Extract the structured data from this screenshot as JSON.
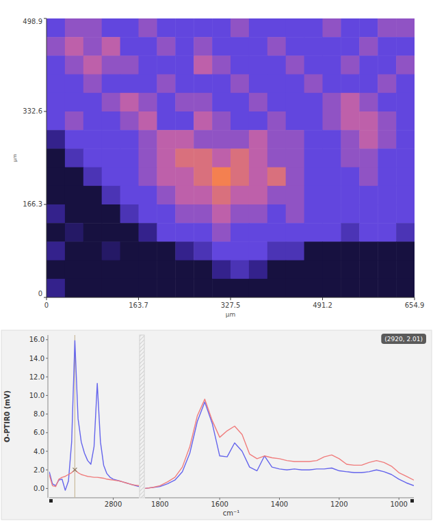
{
  "chart_data": [
    {
      "type": "heatmap",
      "x_label": "µm",
      "y_label": "µm",
      "xlim": [
        0,
        654.9
      ],
      "ylim": [
        0,
        498.9
      ],
      "xticks": [
        0,
        163.7,
        327.5,
        491.2,
        654.9
      ],
      "yticks": [
        0,
        166.3,
        332.6,
        498.9
      ],
      "zlim": [
        0,
        1
      ],
      "cells": [
        [
          0.5,
          0.6,
          0.6,
          0.5,
          0.5,
          0.6,
          0.5,
          0.5,
          0.5,
          0.5,
          0.6,
          0.5,
          0.5,
          0.5,
          0.5,
          0.6,
          0.5,
          0.5,
          0.6,
          0.6
        ],
        [
          0.6,
          0.7,
          0.6,
          0.7,
          0.5,
          0.5,
          0.6,
          0.5,
          0.6,
          0.5,
          0.5,
          0.5,
          0.6,
          0.5,
          0.5,
          0.5,
          0.5,
          0.6,
          0.5,
          0.5
        ],
        [
          0.5,
          0.6,
          0.7,
          0.6,
          0.6,
          0.5,
          0.5,
          0.5,
          0.7,
          0.6,
          0.5,
          0.5,
          0.5,
          0.6,
          0.5,
          0.5,
          0.6,
          0.5,
          0.5,
          0.6
        ],
        [
          0.5,
          0.5,
          0.6,
          0.5,
          0.5,
          0.5,
          0.6,
          0.5,
          0.5,
          0.5,
          0.6,
          0.5,
          0.5,
          0.5,
          0.6,
          0.5,
          0.5,
          0.5,
          0.6,
          0.5
        ],
        [
          0.5,
          0.5,
          0.5,
          0.6,
          0.7,
          0.6,
          0.5,
          0.6,
          0.6,
          0.5,
          0.5,
          0.6,
          0.5,
          0.5,
          0.5,
          0.6,
          0.7,
          0.6,
          0.5,
          0.5
        ],
        [
          0.5,
          0.6,
          0.5,
          0.5,
          0.6,
          0.7,
          0.5,
          0.5,
          0.7,
          0.6,
          0.5,
          0.5,
          0.6,
          0.5,
          0.5,
          0.6,
          0.7,
          0.7,
          0.6,
          0.5
        ],
        [
          0.3,
          0.5,
          0.5,
          0.5,
          0.5,
          0.6,
          0.7,
          0.7,
          0.6,
          0.6,
          0.6,
          0.7,
          0.6,
          0.6,
          0.5,
          0.5,
          0.6,
          0.7,
          0.6,
          0.5
        ],
        [
          0.1,
          0.4,
          0.5,
          0.5,
          0.5,
          0.6,
          0.7,
          0.8,
          0.8,
          0.7,
          0.8,
          0.7,
          0.6,
          0.6,
          0.5,
          0.5,
          0.6,
          0.6,
          0.5,
          0.5
        ],
        [
          0.1,
          0.1,
          0.4,
          0.5,
          0.5,
          0.6,
          0.7,
          0.7,
          0.8,
          0.9,
          0.8,
          0.7,
          0.8,
          0.6,
          0.5,
          0.5,
          0.5,
          0.6,
          0.5,
          0.5
        ],
        [
          0.1,
          0.1,
          0.1,
          0.4,
          0.5,
          0.5,
          0.6,
          0.7,
          0.7,
          0.8,
          0.7,
          0.7,
          0.6,
          0.6,
          0.5,
          0.5,
          0.5,
          0.5,
          0.5,
          0.5
        ],
        [
          0.3,
          0.1,
          0.1,
          0.1,
          0.4,
          0.5,
          0.5,
          0.6,
          0.6,
          0.7,
          0.6,
          0.6,
          0.5,
          0.6,
          0.5,
          0.5,
          0.5,
          0.5,
          0.5,
          0.5
        ],
        [
          0.1,
          0.2,
          0.1,
          0.1,
          0.1,
          0.3,
          0.5,
          0.5,
          0.5,
          0.6,
          0.5,
          0.5,
          0.5,
          0.5,
          0.5,
          0.5,
          0.4,
          0.5,
          0.5,
          0.4
        ],
        [
          0.3,
          0.1,
          0.1,
          0.2,
          0.1,
          0.1,
          0.1,
          0.3,
          0.4,
          0.5,
          0.5,
          0.5,
          0.4,
          0.4,
          0.1,
          0.1,
          0.1,
          0.1,
          0.1,
          0.1
        ],
        [
          0.1,
          0.1,
          0.1,
          0.1,
          0.1,
          0.1,
          0.1,
          0.1,
          0.1,
          0.3,
          0.4,
          0.3,
          0.1,
          0.1,
          0.1,
          0.1,
          0.1,
          0.1,
          0.1,
          0.1
        ],
        [
          0.3,
          0.1,
          0.1,
          0.1,
          0.1,
          0.1,
          0.1,
          0.1,
          0.1,
          0.1,
          0.1,
          0.1,
          0.1,
          0.1,
          0.1,
          0.1,
          0.1,
          0.1,
          0.1,
          0.1
        ]
      ]
    },
    {
      "type": "line",
      "y_label": "O-PTIR0 (mV)",
      "xlim": [
        3000,
        2720
      ],
      "ylim": [
        -1,
        16.5
      ],
      "xticks": [
        2800
      ],
      "yticks": [
        {
          "value": 0,
          "label": "0.0"
        },
        {
          "value": 2,
          "label": "2.0"
        },
        {
          "value": 4,
          "label": "4.0"
        },
        {
          "value": 6,
          "label": "6.0"
        },
        {
          "value": 8,
          "label": "8.0"
        },
        {
          "value": 10,
          "label": "10.0"
        },
        {
          "value": 12,
          "label": "12.0"
        },
        {
          "value": 14,
          "label": "14.0"
        },
        {
          "value": 16,
          "label": "16.0"
        }
      ],
      "annotations": [
        {
          "text": "(2920, 2.01)",
          "x": 2920,
          "y": 2.01
        }
      ],
      "x": [
        3000,
        2990,
        2980,
        2970,
        2960,
        2950,
        2940,
        2930,
        2920,
        2910,
        2900,
        2890,
        2880,
        2870,
        2860,
        2850,
        2840,
        2830,
        2820,
        2810,
        2800,
        2790,
        2780,
        2770,
        2760,
        2750,
        2740,
        2730,
        2720
      ],
      "series": [
        {
          "color": "#6464ec",
          "values": [
            1.8,
            0.5,
            0.3,
            0.9,
            1.0,
            -0.2,
            0.8,
            5.0,
            15.9,
            7.5,
            5.0,
            3.8,
            3.0,
            2.6,
            4.5,
            11.3,
            5.0,
            2.5,
            1.6,
            1.2,
            1.0,
            0.9,
            0.8,
            0.7,
            0.6,
            0.5,
            0.4,
            0.3,
            0.2
          ]
        },
        {
          "color": "#f07c7c",
          "values": [
            1.5,
            0.3,
            0.2,
            1.0,
            1.2,
            1.3,
            1.5,
            1.7,
            2.01,
            1.7,
            1.5,
            1.4,
            1.3,
            1.25,
            1.2,
            1.2,
            1.15,
            1.1,
            1.0,
            0.95,
            0.9,
            0.85,
            0.8,
            0.7,
            0.6,
            0.5,
            0.4,
            0.35,
            0.3
          ]
        }
      ]
    },
    {
      "type": "line",
      "x_label": "cm⁻¹",
      "tick_labels": "x",
      "xlim": [
        1850,
        950
      ],
      "ylim": [
        -1,
        16.5
      ],
      "xticks": [
        1800,
        1600,
        1400,
        1200,
        1000
      ],
      "x": [
        1850,
        1825,
        1800,
        1775,
        1750,
        1725,
        1700,
        1675,
        1650,
        1625,
        1600,
        1575,
        1550,
        1525,
        1500,
        1475,
        1450,
        1425,
        1400,
        1375,
        1350,
        1325,
        1300,
        1275,
        1250,
        1225,
        1200,
        1175,
        1150,
        1125,
        1100,
        1075,
        1050,
        1025,
        1000,
        975,
        950
      ],
      "series": [
        {
          "color": "#6464ec",
          "values": [
            0.0,
            0.1,
            0.2,
            0.5,
            0.9,
            1.8,
            3.8,
            7.2,
            9.3,
            7.0,
            3.5,
            3.4,
            4.9,
            4.0,
            2.3,
            1.9,
            3.5,
            2.3,
            2.1,
            2.0,
            2.1,
            2.0,
            2.0,
            2.1,
            2.1,
            2.2,
            1.9,
            1.8,
            1.7,
            1.7,
            1.8,
            2.0,
            1.8,
            1.5,
            1.0,
            0.6,
            0.3
          ]
        },
        {
          "color": "#f07c7c",
          "values": [
            0.0,
            0.1,
            0.3,
            0.7,
            1.2,
            2.3,
            4.5,
            7.8,
            9.6,
            7.3,
            5.5,
            6.2,
            6.7,
            5.8,
            3.7,
            3.2,
            3.5,
            3.3,
            3.2,
            3.0,
            2.9,
            2.9,
            2.9,
            3.0,
            3.4,
            3.6,
            3.2,
            2.6,
            2.5,
            2.5,
            2.8,
            3.0,
            2.8,
            2.4,
            1.7,
            1.3,
            0.9
          ]
        }
      ]
    }
  ]
}
